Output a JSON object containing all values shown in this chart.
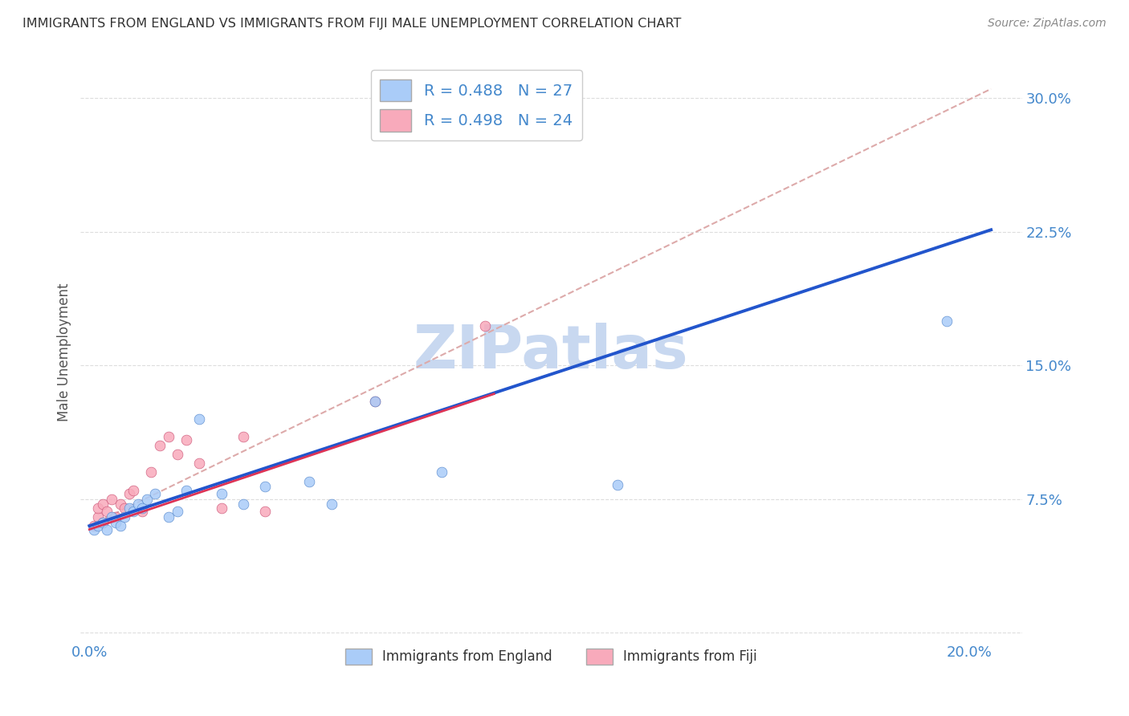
{
  "title": "IMMIGRANTS FROM ENGLAND VS IMMIGRANTS FROM FIJI MALE UNEMPLOYMENT CORRELATION CHART",
  "source": "Source: ZipAtlas.com",
  "ylabel": "Male Unemployment",
  "x_ticks": [
    0.0,
    0.05,
    0.1,
    0.15,
    0.2
  ],
  "y_ticks": [
    0.0,
    0.075,
    0.15,
    0.225,
    0.3
  ],
  "xlim": [
    -0.002,
    0.212
  ],
  "ylim": [
    -0.005,
    0.32
  ],
  "england_color": "#aaccf8",
  "england_edge_color": "#5588cc",
  "fiji_color": "#f8aabb",
  "fiji_edge_color": "#cc5577",
  "england_line_color": "#2255cc",
  "fiji_line_color": "#dd3355",
  "diag_line_color": "#ddaaaa",
  "bg_color": "#ffffff",
  "watermark_color": "#c8d8f0",
  "marker_size": 85,
  "tick_color": "#4488cc",
  "title_color": "#333333",
  "source_color": "#888888",
  "england_x": [
    0.001,
    0.002,
    0.003,
    0.004,
    0.005,
    0.006,
    0.007,
    0.008,
    0.009,
    0.01,
    0.011,
    0.012,
    0.013,
    0.015,
    0.018,
    0.02,
    0.022,
    0.025,
    0.03,
    0.035,
    0.04,
    0.05,
    0.055,
    0.065,
    0.08,
    0.12,
    0.195
  ],
  "england_y": [
    0.058,
    0.06,
    0.062,
    0.058,
    0.065,
    0.062,
    0.06,
    0.065,
    0.07,
    0.068,
    0.072,
    0.07,
    0.075,
    0.078,
    0.065,
    0.068,
    0.08,
    0.12,
    0.078,
    0.072,
    0.082,
    0.085,
    0.072,
    0.13,
    0.09,
    0.083,
    0.175
  ],
  "fiji_x": [
    0.001,
    0.002,
    0.002,
    0.003,
    0.003,
    0.004,
    0.005,
    0.006,
    0.007,
    0.008,
    0.009,
    0.01,
    0.012,
    0.014,
    0.016,
    0.018,
    0.02,
    0.022,
    0.025,
    0.03,
    0.035,
    0.04,
    0.065,
    0.09
  ],
  "fiji_y": [
    0.06,
    0.065,
    0.07,
    0.062,
    0.072,
    0.068,
    0.075,
    0.065,
    0.072,
    0.07,
    0.078,
    0.08,
    0.068,
    0.09,
    0.105,
    0.11,
    0.1,
    0.108,
    0.095,
    0.07,
    0.11,
    0.068,
    0.13,
    0.172
  ],
  "england_line_x0": 0.0,
  "england_line_y0": 0.06,
  "england_line_x1": 0.205,
  "england_line_y1": 0.226,
  "fiji_line_x0": 0.0,
  "fiji_line_y0": 0.058,
  "fiji_line_x1": 0.092,
  "fiji_line_y1": 0.134,
  "diag_line_x0": 0.0,
  "diag_line_y0": 0.06,
  "diag_line_x1": 0.205,
  "diag_line_y1": 0.305,
  "legend_england_label": "R = 0.488   N = 27",
  "legend_fiji_label": "R = 0.498   N = 24",
  "bottom_legend_labels": [
    "Immigrants from England",
    "Immigrants from Fiji"
  ]
}
